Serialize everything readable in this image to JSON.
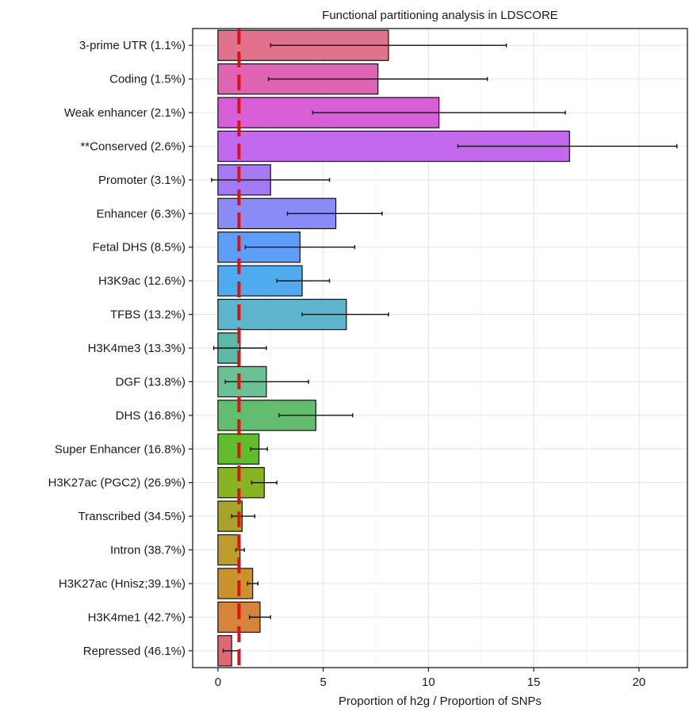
{
  "chart_data": {
    "type": "bar",
    "orientation": "horizontal",
    "title": "Functional partitioning analysis in LDSCORE",
    "xlabel": "Proportion of h2g / Proportion of SNPs",
    "ylabel": "",
    "xlim": [
      -1.2,
      22.3
    ],
    "xticks": [
      0,
      5,
      10,
      15,
      20
    ],
    "grid": true,
    "reference_line": {
      "x": 1,
      "color": "#dd1111",
      "style": "dashed"
    },
    "categories": [
      "3-prime UTR (1.1%)",
      "Coding (1.5%)",
      "Weak enhancer (2.1%)",
      "**Conserved (2.6%)",
      "Promoter (3.1%)",
      "Enhancer (6.3%)",
      "Fetal DHS (8.5%)",
      "H3K9ac (12.6%)",
      "TFBS (13.2%)",
      "H3K4me3 (13.3%)",
      "DGF (13.8%)",
      "DHS (16.8%)",
      "Super Enhancer (16.8%)",
      "H3K27ac (PGC2) (26.9%)",
      "Transcribed (34.5%)",
      "Intron (38.7%)",
      "H3K27ac (Hnisz;39.1%)",
      "H3K4me1 (42.7%)",
      "Repressed (46.1%)"
    ],
    "values": [
      8.1,
      7.6,
      10.5,
      16.7,
      2.5,
      5.6,
      3.9,
      4.0,
      6.1,
      1.05,
      2.3,
      4.65,
      1.95,
      2.2,
      1.15,
      1.05,
      1.65,
      2.0,
      0.65
    ],
    "error_low": [
      2.5,
      2.4,
      4.5,
      11.4,
      -0.3,
      3.3,
      1.3,
      2.8,
      4.0,
      -0.2,
      0.35,
      2.9,
      1.55,
      1.6,
      0.65,
      0.85,
      1.4,
      1.5,
      0.25
    ],
    "error_high": [
      13.7,
      12.8,
      16.5,
      21.8,
      5.3,
      7.8,
      6.5,
      5.3,
      8.1,
      2.3,
      4.3,
      6.4,
      2.35,
      2.8,
      1.75,
      1.25,
      1.9,
      2.5,
      1.05
    ],
    "colors": [
      "#e0728c",
      "#e064b4",
      "#d85ed8",
      "#c269ee",
      "#a679f4",
      "#8a8cf8",
      "#5d9ff8",
      "#50abee",
      "#5cb5cc",
      "#5cb8a8",
      "#6bc196",
      "#62bd6e",
      "#61bc2c",
      "#88b424",
      "#a6a42a",
      "#bc9d2e",
      "#cc932c",
      "#d5843a",
      "#dd6a72"
    ]
  }
}
